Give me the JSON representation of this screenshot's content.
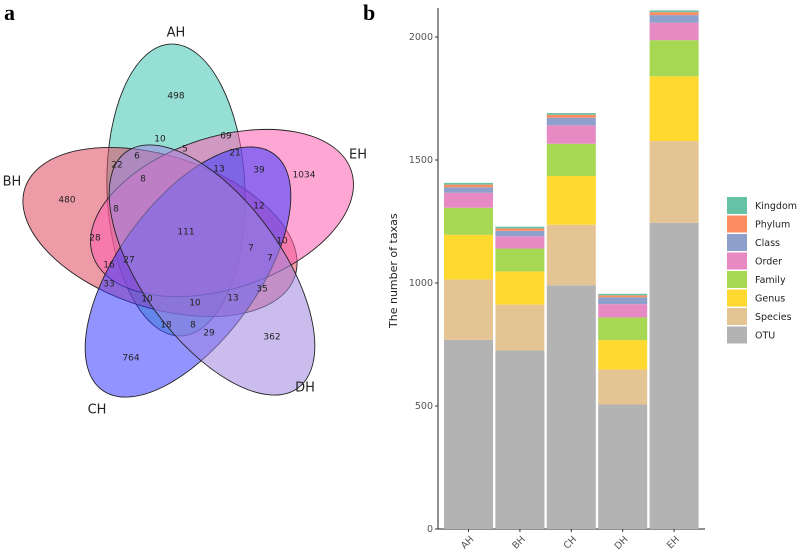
{
  "panels": {
    "a": "a",
    "b": "b"
  },
  "venn": {
    "sets": [
      {
        "name": "AH",
        "color": "#3fc4b2"
      },
      {
        "name": "BH",
        "color": "#e04860"
      },
      {
        "name": "EH",
        "color": "#ff5fb0"
      },
      {
        "name": "CH",
        "color": "#3a3aff"
      },
      {
        "name": "DH",
        "color": "#9f86e0"
      }
    ],
    "regions": [
      "498",
      "10",
      "69",
      "6",
      "5",
      "21",
      "22",
      "8",
      "13",
      "39",
      "1034",
      "480",
      "8",
      "12",
      "111",
      "28",
      "10",
      "7",
      "7",
      "16",
      "27",
      "33",
      "10",
      "10",
      "13",
      "35",
      "18",
      "8",
      "29",
      "362",
      "764"
    ]
  },
  "chart_data": {
    "type": "bar",
    "stacked": true,
    "categories": [
      "AH",
      "BH",
      "CH",
      "DH",
      "EH"
    ],
    "ylabel": "The number of taxas",
    "xlabel": "",
    "ylim": [
      0,
      2100
    ],
    "yticks": [
      0,
      500,
      1000,
      1500,
      2000
    ],
    "grid": false,
    "legend_position": "right",
    "series": [
      {
        "name": "OTU",
        "color": "#b3b3b3",
        "values": [
          769,
          726,
          991,
          506,
          1245
        ]
      },
      {
        "name": "Species",
        "color": "#e5c494",
        "values": [
          245,
          186,
          246,
          142,
          332
        ]
      },
      {
        "name": "Genus",
        "color": "#ffd92f",
        "values": [
          182,
          135,
          198,
          120,
          263
        ]
      },
      {
        "name": "Family",
        "color": "#a6d854",
        "values": [
          110,
          93,
          131,
          92,
          147
        ]
      },
      {
        "name": "Order",
        "color": "#e78ac3",
        "values": [
          61,
          50,
          75,
          54,
          71
        ]
      },
      {
        "name": "Class",
        "color": "#8da0cb",
        "values": [
          22,
          22,
          31,
          28,
          31
        ]
      },
      {
        "name": "Phylum",
        "color": "#fc8d62",
        "values": [
          11,
          10,
          12,
          8,
          12
        ]
      },
      {
        "name": "Kingdom",
        "color": "#66c2a5",
        "values": [
          7,
          7,
          7,
          6,
          7
        ]
      }
    ],
    "legend_order": [
      "Kingdom",
      "Phylum",
      "Class",
      "Order",
      "Family",
      "Genus",
      "Species",
      "OTU"
    ]
  }
}
